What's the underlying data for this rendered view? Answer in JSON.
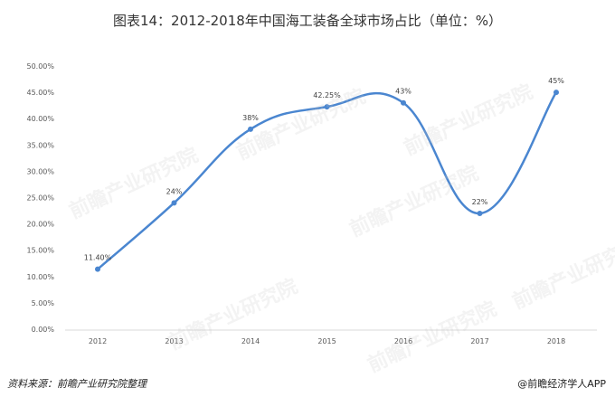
{
  "header": {
    "title": "图表14：2012-2018年中国海工装备全球市场占比（单位：%）"
  },
  "footer": {
    "source": "资料来源：前瞻产业研究院整理",
    "brand": "@前瞻经济学人APP"
  },
  "watermark": {
    "text": "前瞻产业研究院"
  },
  "colors": {
    "line": "#4A86D0",
    "point": "#4A86D0"
  },
  "chart_data": {
    "type": "line",
    "title": "图表14：2012-2018年中国海工装备全球市场占比（单位：%）",
    "categories": [
      "2012",
      "2013",
      "2014",
      "2015",
      "2016",
      "2017",
      "2018"
    ],
    "values": [
      11.4,
      24,
      38,
      42.25,
      43,
      22,
      45
    ],
    "data_labels": [
      "11.40%",
      "24%",
      "38%",
      "42.25%",
      "43%",
      "22%",
      "45%"
    ],
    "y_ticks": [
      "0.00%",
      "5.00%",
      "10.00%",
      "15.00%",
      "20.00%",
      "25.00%",
      "30.00%",
      "35.00%",
      "40.00%",
      "45.00%",
      "50.00%"
    ],
    "ylim": [
      0,
      50
    ],
    "grid": false,
    "legend": "none",
    "smooth": true
  }
}
